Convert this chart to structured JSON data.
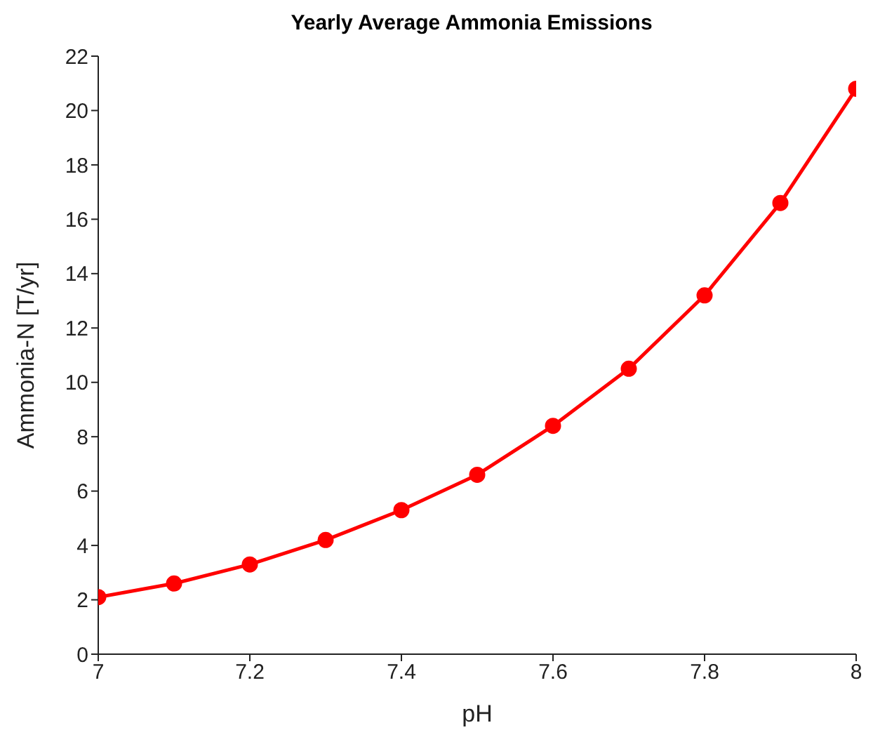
{
  "chart_data": {
    "type": "line",
    "title": "Yearly Average Ammonia Emissions",
    "xlabel": "pH",
    "ylabel": "Ammonia-N [T/yr]",
    "x": [
      7,
      7.1,
      7.2,
      7.3,
      7.4,
      7.5,
      7.6,
      7.7,
      7.8,
      7.9,
      8
    ],
    "series": [
      {
        "color": "#ff0000",
        "values": [
          2.1,
          2.6,
          3.3,
          4.2,
          5.3,
          6.6,
          8.4,
          10.5,
          13.2,
          16.6,
          20.8
        ]
      }
    ],
    "xlim": [
      7,
      8
    ],
    "xticks": [
      7,
      {
        "value": 7.2,
        "label": "7.2"
      },
      {
        "value": 7.4,
        "label": "7.4"
      },
      {
        "value": 7.6,
        "label": "7.6"
      },
      {
        "value": 7.8,
        "label": "7.8"
      },
      8
    ],
    "ylim": [
      0,
      22
    ],
    "yticks": [
      0,
      2,
      4,
      6,
      8,
      10,
      12,
      14,
      16,
      18,
      20,
      22
    ],
    "grid": false,
    "legend": false,
    "marker": "circle",
    "line_style": "solid"
  }
}
